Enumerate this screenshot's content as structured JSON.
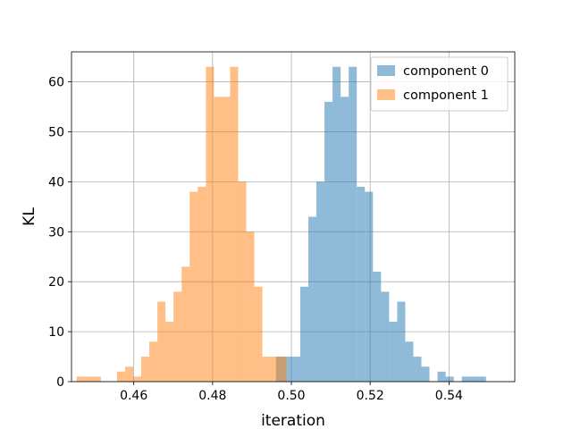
{
  "chart_data": {
    "type": "histogram",
    "xlabel": "iteration",
    "ylabel": "KL",
    "xlim": [
      0.4442,
      0.5567
    ],
    "ylim": [
      0,
      66
    ],
    "x_ticks": [
      0.46,
      0.48,
      0.5,
      0.52,
      0.54
    ],
    "x_tick_labels": [
      "0.46",
      "0.48",
      "0.50",
      "0.52",
      "0.54"
    ],
    "y_ticks": [
      0,
      10,
      20,
      30,
      40,
      50,
      60
    ],
    "y_tick_labels": [
      "0",
      "10",
      "20",
      "30",
      "40",
      "50",
      "60"
    ],
    "grid": true,
    "legend_position": "top-right",
    "bin_width": 0.00205,
    "series": [
      {
        "name": "component 0",
        "color": "#1f77b4",
        "alpha": 0.5,
        "bin_start": 0.4961,
        "counts": [
          5,
          5,
          5,
          19,
          33,
          40,
          56,
          63,
          57,
          63,
          39,
          38,
          22,
          18,
          12,
          16,
          8,
          5,
          3,
          0,
          2,
          1,
          0,
          1,
          1,
          1
        ]
      },
      {
        "name": "component 1",
        "color": "#ff7f0e",
        "alpha": 0.5,
        "bin_start": 0.4455,
        "counts": [
          1,
          1,
          1,
          0,
          0,
          2,
          3,
          1,
          5,
          8,
          16,
          12,
          18,
          23,
          38,
          39,
          63,
          57,
          57,
          63,
          40,
          30,
          19,
          5,
          5,
          5
        ]
      }
    ]
  }
}
